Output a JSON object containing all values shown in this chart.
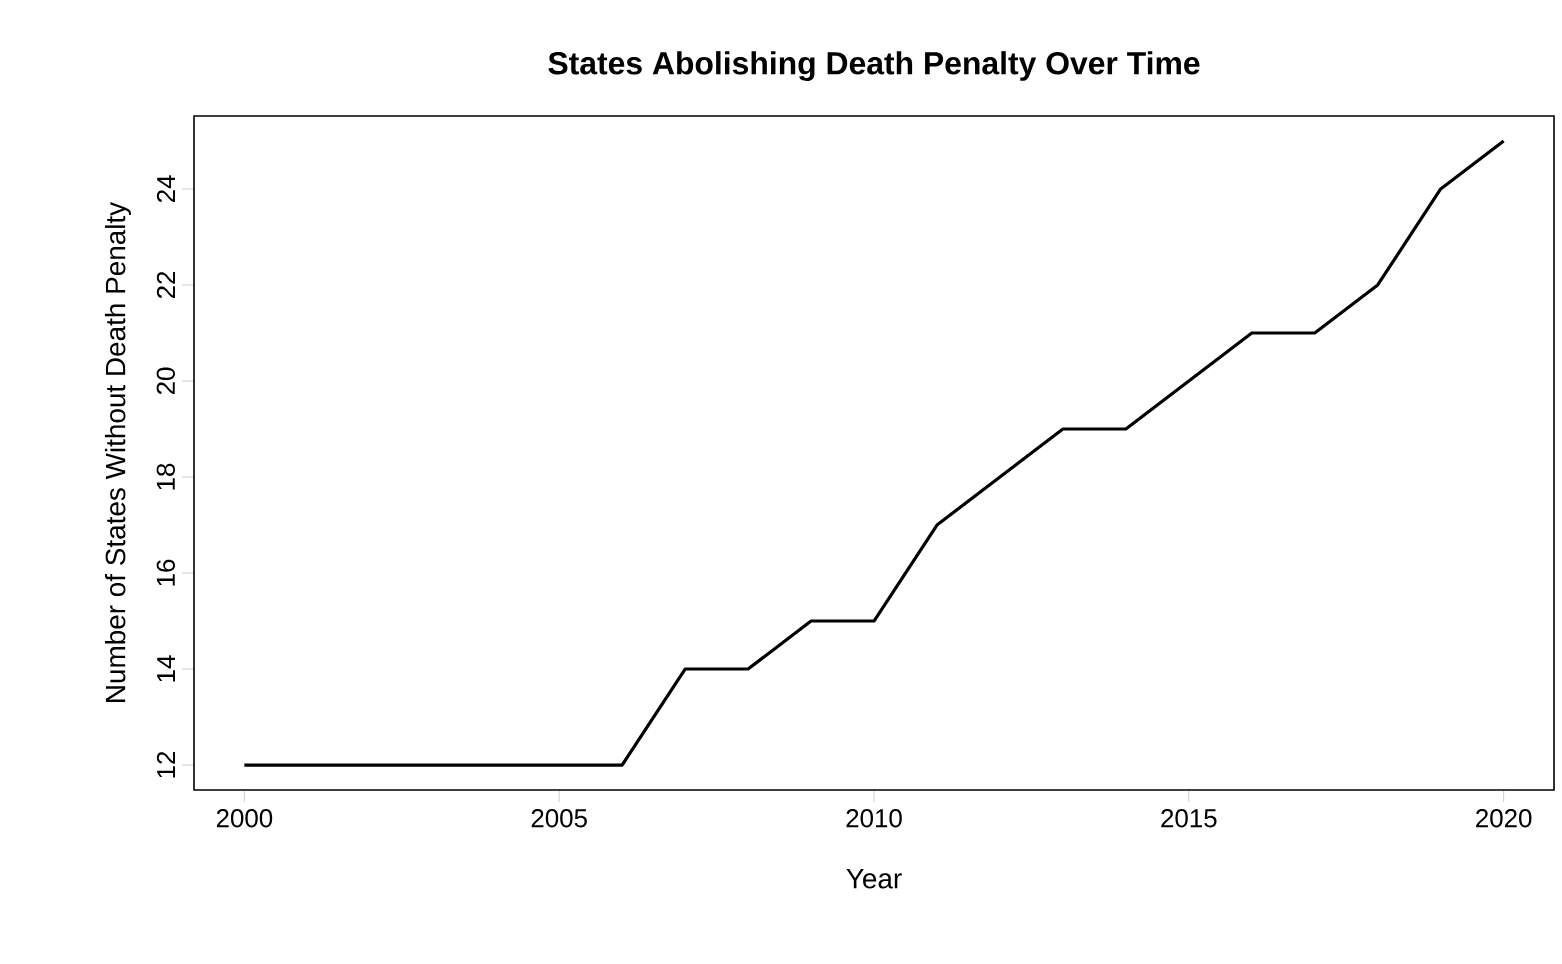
{
  "chart_data": {
    "type": "line",
    "title": "States Abolishing Death Penalty Over Time",
    "xlabel": "Year",
    "ylabel": "Number of States Without Death Penalty",
    "x": [
      2000,
      2001,
      2002,
      2003,
      2004,
      2005,
      2006,
      2007,
      2008,
      2009,
      2010,
      2011,
      2012,
      2013,
      2014,
      2015,
      2016,
      2017,
      2018,
      2019,
      2020
    ],
    "series": [
      {
        "color": "#000000",
        "values": [
          12,
          12,
          12,
          12,
          12,
          12,
          12,
          14,
          14,
          15,
          15,
          17,
          18,
          19,
          19,
          20,
          21,
          21,
          22,
          24,
          25
        ]
      }
    ],
    "xlim": [
      1999.2,
      2020.8
    ],
    "ylim": [
      11.48,
      25.52
    ],
    "xticks": [
      2000,
      2005,
      2010,
      2015,
      2020
    ],
    "yticks": [
      12,
      14,
      16,
      18,
      20,
      22,
      24
    ],
    "grid": false,
    "marker": "none",
    "line_style": "solid"
  }
}
